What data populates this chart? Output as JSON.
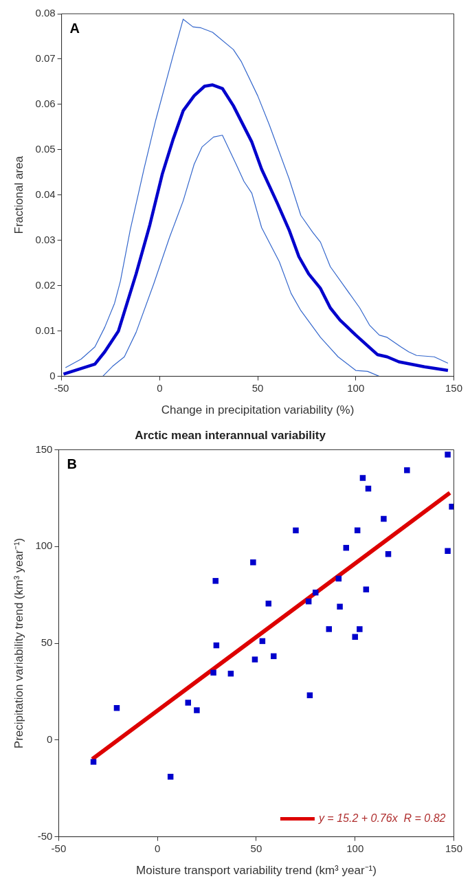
{
  "chart_data": [
    {
      "type": "line",
      "xlabel": "Change in precipitation variability (%)",
      "ylabel": "Fractional area",
      "annotations": [
        "A"
      ],
      "xlim": [
        -50,
        150
      ],
      "ylim": [
        0,
        0.08
      ],
      "xticks": [
        -50,
        0,
        50,
        100,
        150
      ],
      "yticks": [
        0,
        0.01,
        0.02,
        0.03,
        0.04,
        0.05,
        0.06,
        0.07,
        0.08
      ],
      "grid": false,
      "line_style": "solid",
      "series": [
        {
          "color": "#0000cc",
          "x": [
            -49,
            -33,
            -28,
            -21,
            -12,
            -5,
            1.4,
            6.8,
            12,
            17.6,
            22.9,
            27,
            32,
            37.6,
            47,
            52,
            60,
            66,
            71,
            76,
            82,
            87,
            92,
            100,
            111,
            116,
            122,
            135,
            147
          ],
          "values": [
            0.0005,
            0.0027,
            0.0054,
            0.01,
            0.0226,
            0.0334,
            0.0447,
            0.0522,
            0.0586,
            0.0619,
            0.064,
            0.0643,
            0.0635,
            0.0597,
            0.0517,
            0.0457,
            0.0382,
            0.0323,
            0.0264,
            0.0226,
            0.0194,
            0.0151,
            0.0124,
            0.0091,
            0.0048,
            0.0043,
            0.0032,
            0.0021,
            0.0013
          ]
        },
        {
          "color": "#3366cc",
          "x": [
            -48,
            -40,
            -33,
            -28,
            -23,
            -20,
            -15,
            -8,
            -2,
            7,
            12,
            17,
            21,
            27,
            37.6,
            41.7,
            50,
            56,
            66,
            72,
            78,
            82,
            87,
            102,
            107,
            112,
            116,
            123,
            127,
            131,
            140,
            147
          ],
          "values": [
            0.0019,
            0.0038,
            0.0065,
            0.0108,
            0.0161,
            0.021,
            0.0323,
            0.0457,
            0.0565,
            0.071,
            0.0788,
            0.0771,
            0.0769,
            0.0759,
            0.0721,
            0.0694,
            0.0619,
            0.0554,
            0.0436,
            0.0355,
            0.0318,
            0.0296,
            0.0242,
            0.0151,
            0.0113,
            0.0091,
            0.0086,
            0.0065,
            0.0054,
            0.0046,
            0.0043,
            0.0029
          ]
        },
        {
          "color": "#3366cc",
          "x": [
            -29,
            -24,
            -18,
            -12,
            -3,
            5,
            12,
            17.6,
            21.6,
            27.5,
            32,
            39,
            43,
            47,
            52,
            61,
            67,
            72,
            82,
            91,
            100,
            106,
            112
          ],
          "values": [
            0,
            0.0022,
            0.0043,
            0.0097,
            0.0204,
            0.0306,
            0.0387,
            0.0468,
            0.0506,
            0.0528,
            0.0532,
            0.0468,
            0.043,
            0.0404,
            0.0328,
            0.0253,
            0.0183,
            0.0145,
            0.0086,
            0.0043,
            0.0013,
            0.0011,
            0
          ]
        }
      ]
    },
    {
      "type": "scatter",
      "title": "Arctic mean interannual variability",
      "xlabel": "Moisture transport variability trend (km³ year⁻¹)",
      "ylabel": "Precipitation variability trend (km³ year⁻¹)",
      "annotations": [
        "B"
      ],
      "xlim": [
        -50,
        150
      ],
      "ylim": [
        -50,
        150
      ],
      "xticks": [
        -50,
        0,
        50,
        100,
        150
      ],
      "yticks": [
        -50,
        0,
        50,
        100,
        150
      ],
      "grid": false,
      "legend": "bottom right",
      "series": [
        {
          "type": "scatter",
          "color": "#0000cc",
          "marker": "square",
          "x": [
            146.9,
            126.3,
            103.9,
            106.7,
            149,
            114.5,
            70,
            101.2,
            95.5,
            116.8,
            146.9,
            48.4,
            29.4,
            91.7,
            80,
            76.5,
            105.6,
            56.2,
            92.3,
            86.8,
            102.3,
            100,
            53.1,
            29.8,
            49.3,
            58.8,
            28.3,
            37.1,
            77.1,
            -20.6,
            15.5,
            19.9,
            -32.4,
            6.6
          ],
          "values": [
            147.5,
            139.4,
            135.4,
            129.9,
            120.6,
            114.3,
            108.3,
            108.3,
            99.3,
            96.1,
            97.7,
            91.8,
            82.2,
            83.4,
            76.2,
            71.6,
            77.8,
            70.5,
            68.9,
            57.3,
            57.3,
            53.3,
            51.1,
            48.9,
            41.6,
            43.3,
            34.8,
            34.3,
            23.1,
            16.5,
            19.3,
            15.4,
            -11.3,
            -19
          ]
        },
        {
          "type": "line",
          "name": "y = 15.2 + 0.76x  R = 0.82",
          "color": "#dd0000",
          "marker": "none",
          "line_style": "solid",
          "x": [
            -33,
            148
          ],
          "values": [
            -9.9,
            127.7
          ]
        }
      ]
    }
  ]
}
